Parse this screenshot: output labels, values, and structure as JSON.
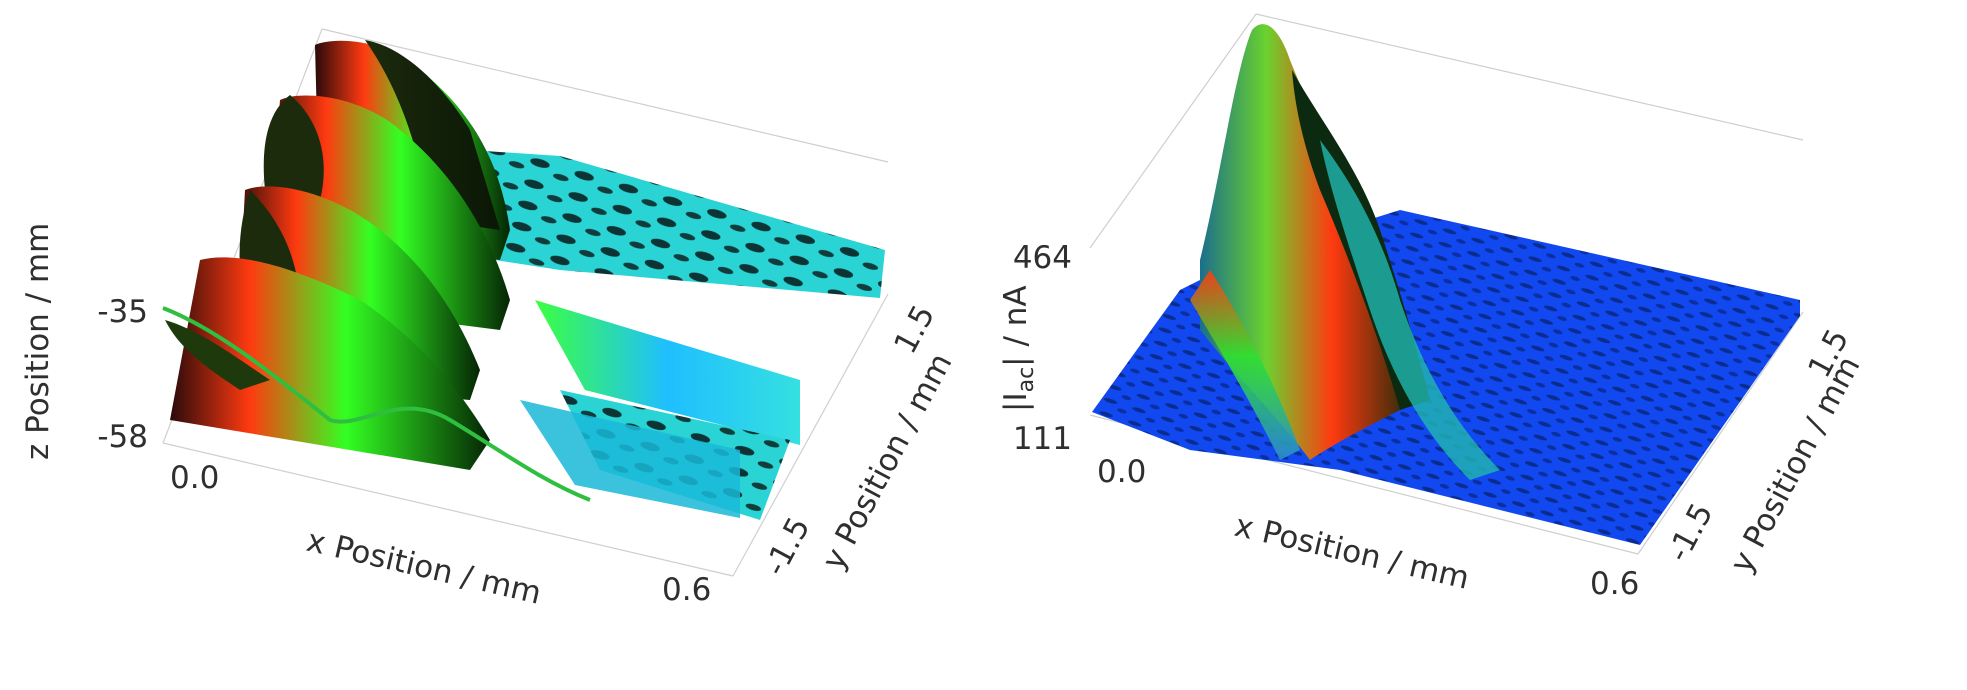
{
  "chart_data": [
    {
      "type": "surface3d",
      "title": "",
      "xlabel": "x Position / mm",
      "ylabel": "y Position / mm",
      "zlabel": "z Position / mm",
      "x_ticks": [
        "0.0",
        "0.6"
      ],
      "y_ticks": [
        "-1.5",
        "1.5"
      ],
      "z_ticks": [
        "-35",
        "-58"
      ],
      "xlim": [
        0.0,
        0.6
      ],
      "ylim": [
        -1.5,
        1.5
      ],
      "zlim": [
        -58,
        -35
      ],
      "colormap": [
        "#0000ff",
        "#00ffff",
        "#00ff00",
        "#ff0000"
      ],
      "description_values": {
        "ridge_count": 4,
        "ridge_x_center_mm": 0.2
      }
    },
    {
      "type": "surface3d",
      "title": "",
      "xlabel": "x Position / mm",
      "ylabel": "y Position / mm",
      "zlabel_main": "|I",
      "zlabel_sub": "ac",
      "zlabel_tail": "| / nA",
      "x_ticks": [
        "0.0",
        "0.6"
      ],
      "y_ticks": [
        "-1.5",
        "1.5"
      ],
      "z_ticks": [
        "464",
        "111"
      ],
      "xlim": [
        0.0,
        0.6
      ],
      "ylim": [
        -1.5,
        1.5
      ],
      "zlim": [
        111,
        464
      ],
      "colormap": [
        "#0000ff",
        "#00ffff",
        "#00ff00",
        "#ff0000"
      ],
      "description_values": {
        "peak_x_mm": 0.2,
        "peak_value_nA": 464,
        "background_value_nA": 120
      }
    }
  ]
}
